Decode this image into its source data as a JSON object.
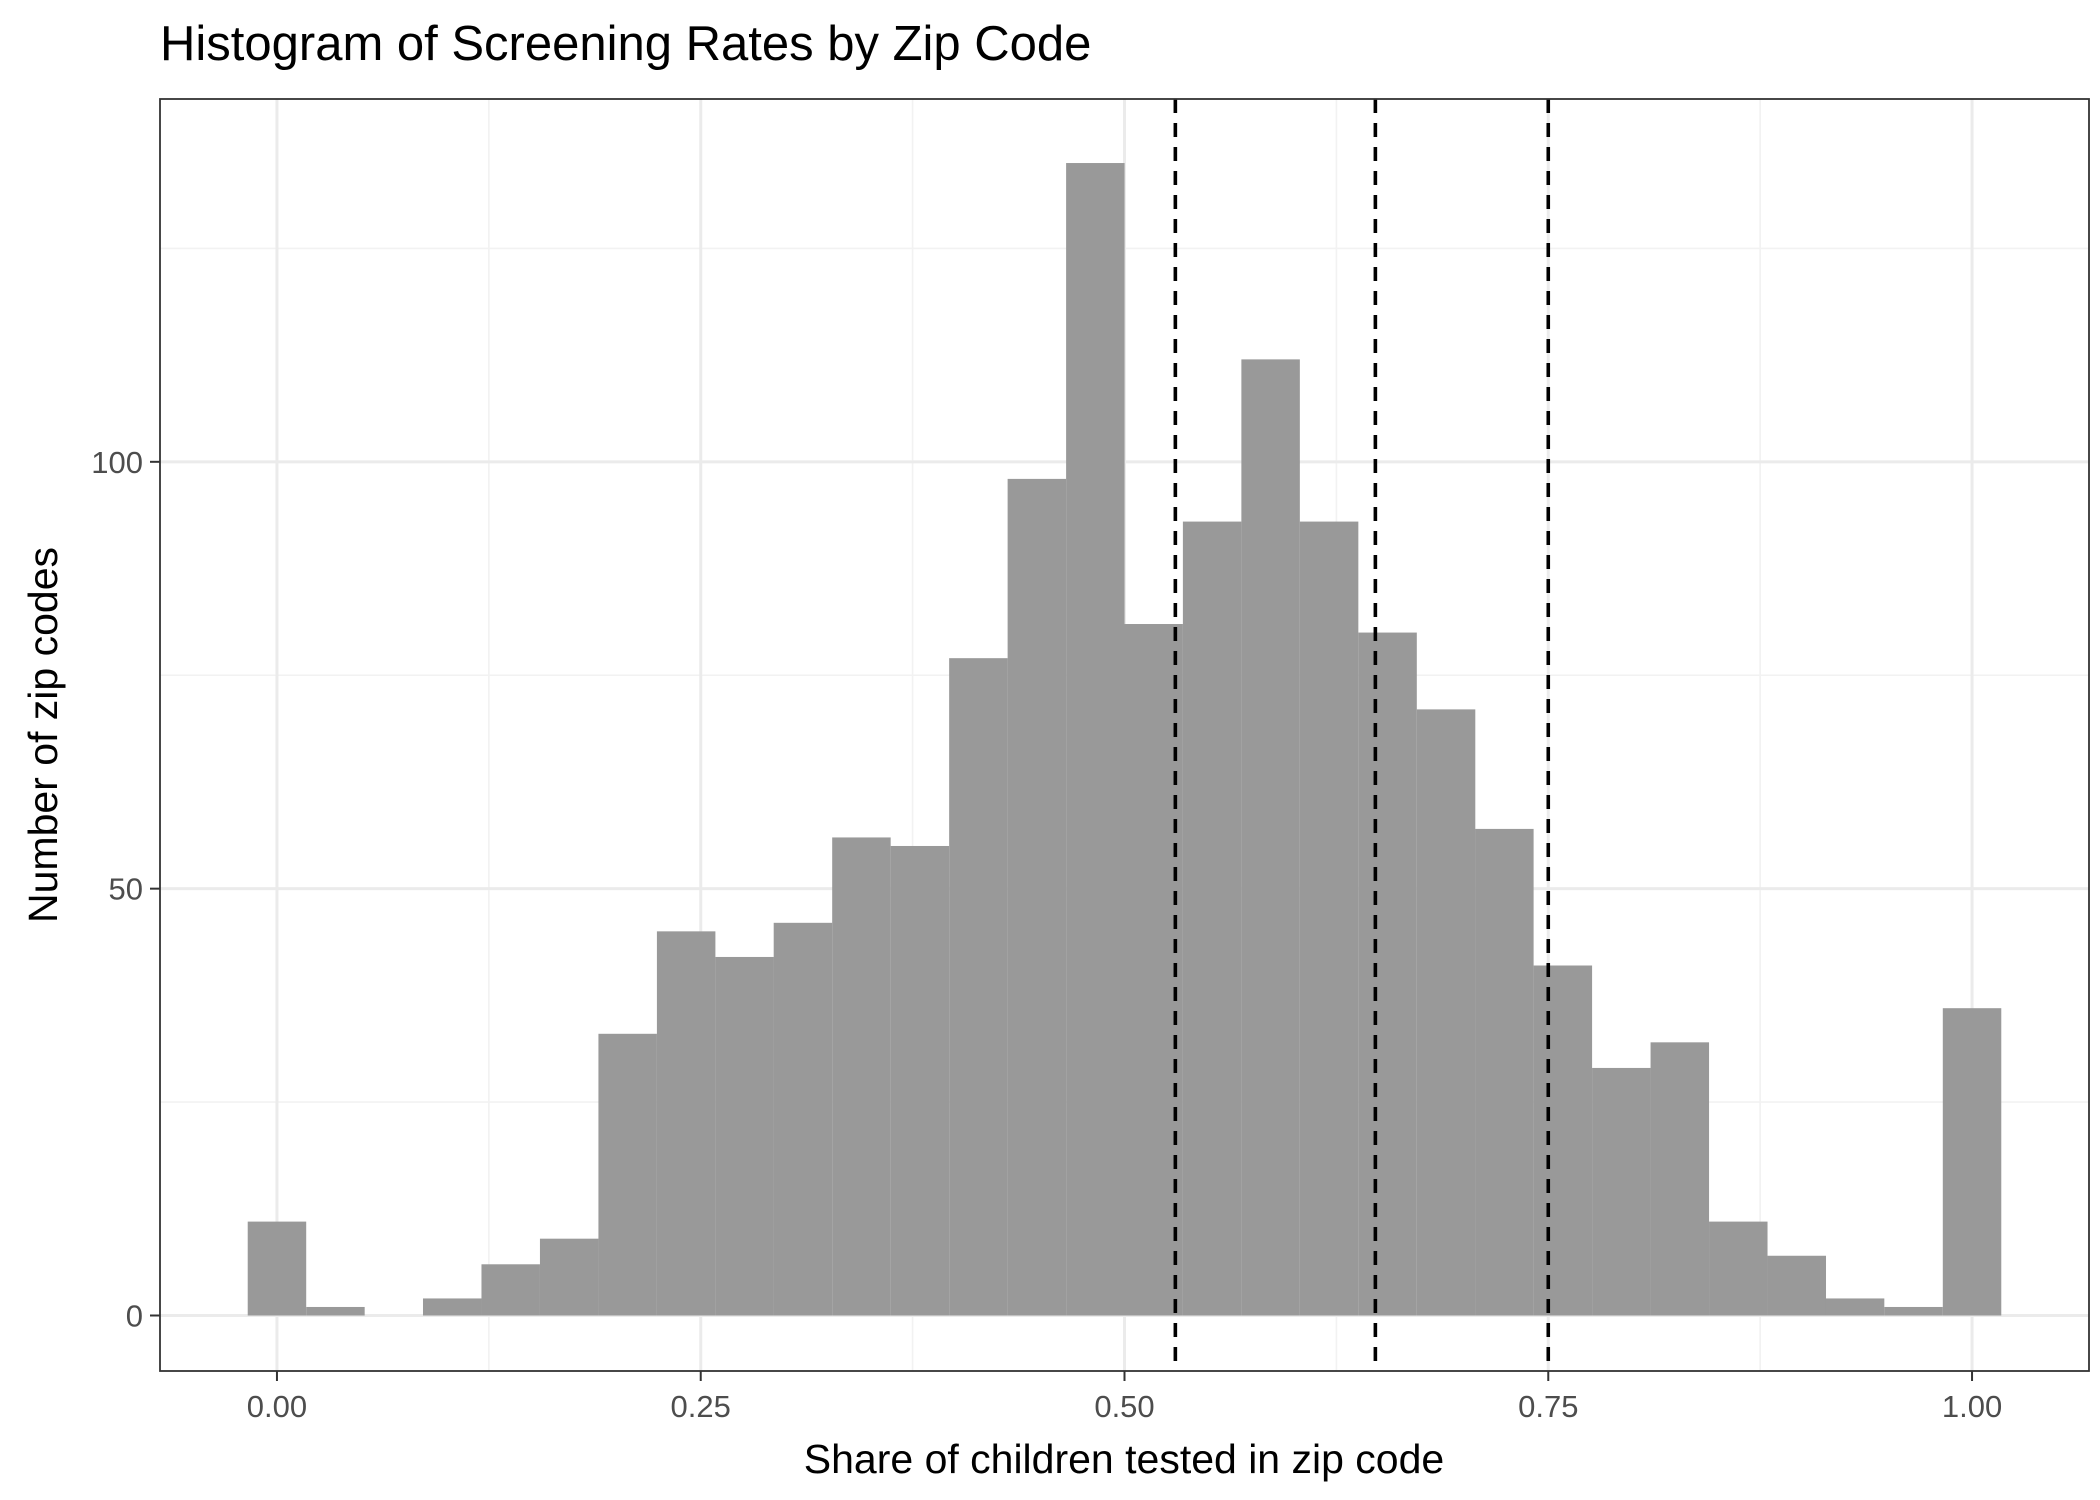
{
  "chart_data": {
    "type": "bar",
    "title": "Histogram of Screening Rates by Zip Code",
    "xlabel": "Share of children tested in zip code",
    "ylabel": "Number of zip codes",
    "xlim": [
      -0.069,
      1.069
    ],
    "ylim": [
      -6.5,
      142.5
    ],
    "x_ticks": [
      0.0,
      0.25,
      0.5,
      0.75,
      1.0
    ],
    "x_tick_labels": [
      "0.00",
      "0.25",
      "0.50",
      "0.75",
      "1.00"
    ],
    "y_ticks": [
      0,
      50,
      100
    ],
    "y_tick_labels": [
      "0",
      "50",
      "100"
    ],
    "bin_width": 0.0345,
    "bin_centers": [
      0.0,
      0.0345,
      0.069,
      0.1034,
      0.1379,
      0.1724,
      0.2069,
      0.2414,
      0.2759,
      0.3103,
      0.3448,
      0.3793,
      0.4138,
      0.4483,
      0.4828,
      0.5172,
      0.5517,
      0.5862,
      0.6207,
      0.6552,
      0.6897,
      0.7241,
      0.7586,
      0.7931,
      0.8276,
      0.8621,
      0.8966,
      0.931,
      0.9655,
      1.0
    ],
    "values": [
      11,
      1,
      0,
      2,
      6,
      9,
      33,
      45,
      42,
      46,
      56,
      55,
      77,
      98,
      135,
      81,
      93,
      112,
      93,
      80,
      71,
      57,
      41,
      29,
      32,
      11,
      7,
      2,
      1,
      36
    ],
    "reference_lines": [
      {
        "x": 0.53,
        "style": "dashed"
      },
      {
        "x": 0.648,
        "style": "dashed"
      },
      {
        "x": 0.75,
        "style": "dashed"
      }
    ],
    "grid": true,
    "legend": "none",
    "colors": {
      "bar_fill": "#999999",
      "reference_line": "#000000",
      "grid_major": "#ebebeb",
      "grid_minor": "#f2f2f2",
      "panel_border": "#333333",
      "tick_label": "#4d4d4d"
    }
  }
}
